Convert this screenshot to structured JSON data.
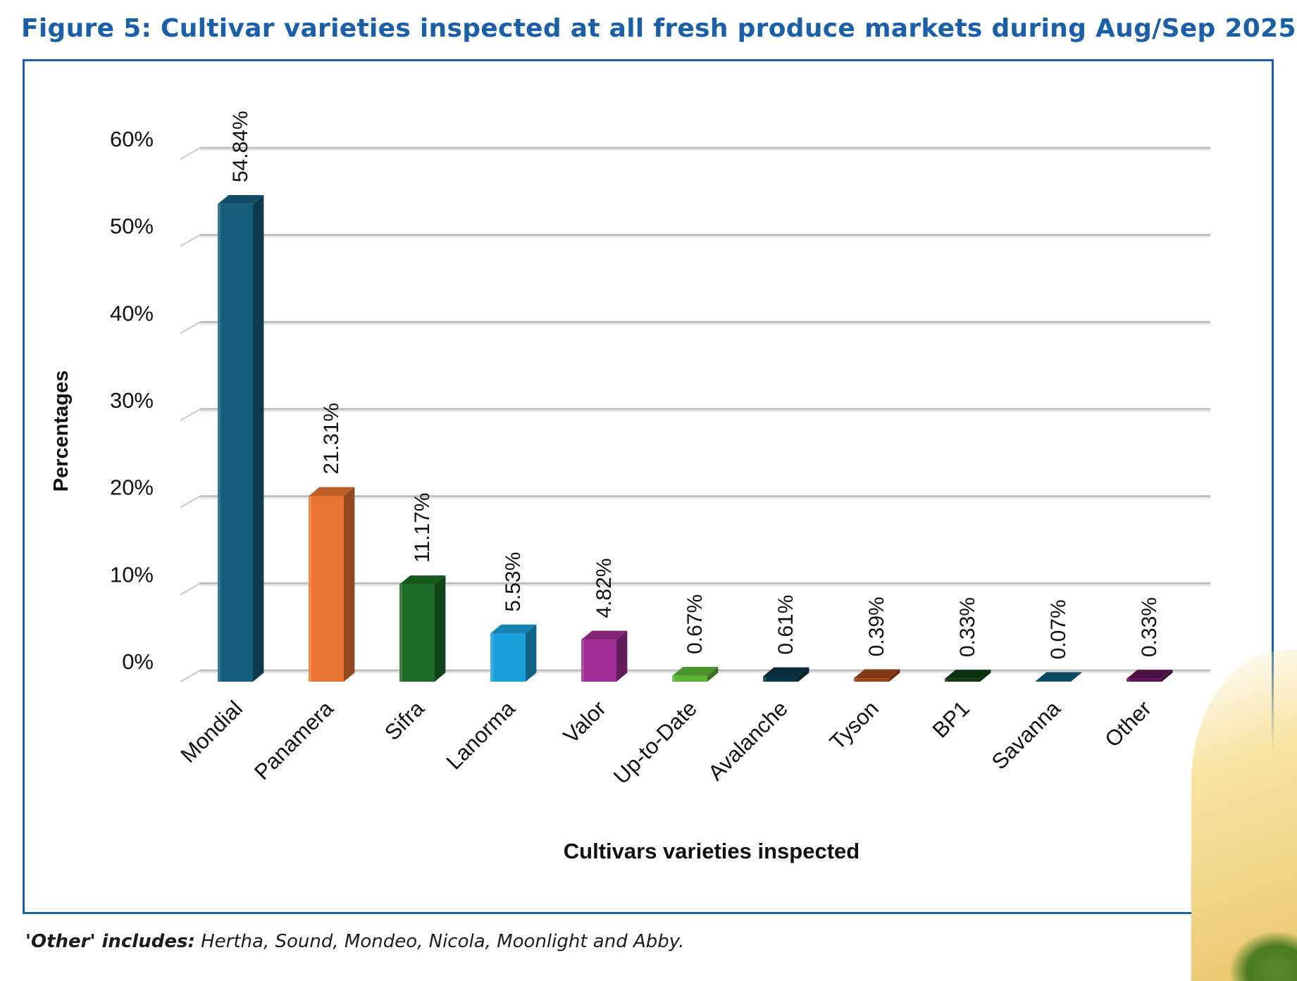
{
  "title": "Figure 5: Cultivar varieties inspected at all fresh produce markets during Aug/Sep 2025.",
  "footnote": {
    "label": "'Other' includes:",
    "text": " Hertha, Sound, Mondeo, Nicola, Moonlight and Abby."
  },
  "chart_data": {
    "type": "bar",
    "categories": [
      "Mondial",
      "Panamera",
      "Sifra",
      "Lanorma",
      "Valor",
      "Up-to-Date",
      "Avalanche",
      "Tyson",
      "BP1",
      "Savanna",
      "Other"
    ],
    "values": [
      54.84,
      21.31,
      11.17,
      5.53,
      4.82,
      0.67,
      0.61,
      0.39,
      0.33,
      0.07,
      0.33
    ],
    "data_labels": [
      "54.84%",
      "21.31%",
      "11.17%",
      "5.53%",
      "4.82%",
      "0.67%",
      "0.61%",
      "0.39%",
      "0.33%",
      "0.07%",
      "0.33%"
    ],
    "colors": [
      "#155e7e",
      "#e87432",
      "#1c6b26",
      "#1ba0d9",
      "#a02e94",
      "#5cb535",
      "#0b3549",
      "#9c4518",
      "#103a12",
      "#105a78",
      "#5b1554"
    ],
    "ylabel": "Percentages",
    "xlabel": "Cultivars varieties inspected",
    "yticks": [
      0,
      10,
      20,
      30,
      40,
      50,
      60
    ],
    "ytick_labels": [
      "0%",
      "10%",
      "20%",
      "30%",
      "40%",
      "50%",
      "60%"
    ],
    "ylim": [
      0,
      60
    ],
    "grid": true,
    "style": "3d-bar"
  }
}
